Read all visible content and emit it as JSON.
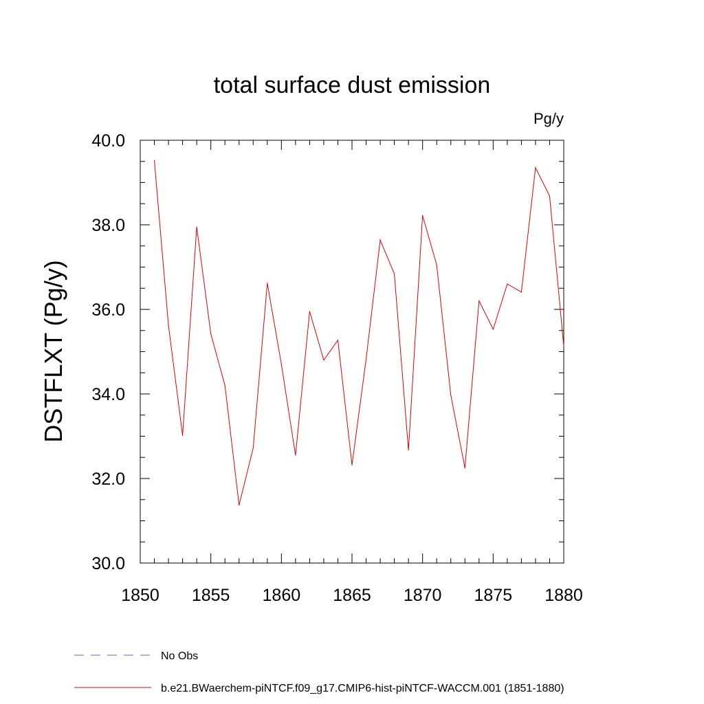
{
  "chart_data": {
    "type": "line",
    "title": "total surface dust emission",
    "units_label": "Pg/y",
    "ylabel": "DSTFLXT  (Pg/y)",
    "xlabel": "",
    "xlim": [
      1850,
      1880
    ],
    "ylim": [
      30.0,
      40.0
    ],
    "x_ticks": [
      "1850",
      "1855",
      "1860",
      "1865",
      "1870",
      "1875",
      "1880"
    ],
    "y_ticks": [
      "30.0",
      "32.0",
      "34.0",
      "36.0",
      "38.0",
      "40.0"
    ],
    "grid": false,
    "legend_position": "bottom-left",
    "series": [
      {
        "name": "b.e21.BWaerchem-piNTCF.f09_g17.CMIP6-hist-piNTCF-WACCM.001 (1851-1880)",
        "color": "#e00000",
        "style": "solid",
        "x": [
          1851,
          1852,
          1853,
          1854,
          1855,
          1856,
          1857,
          1858,
          1859,
          1860,
          1861,
          1862,
          1863,
          1864,
          1865,
          1866,
          1867,
          1868,
          1869,
          1870,
          1871,
          1872,
          1873,
          1874,
          1875,
          1876,
          1877,
          1878,
          1879,
          1880
        ],
        "values": [
          39.52,
          35.62,
          33.02,
          37.95,
          35.42,
          34.2,
          31.37,
          32.72,
          36.62,
          34.7,
          32.55,
          35.95,
          34.8,
          35.27,
          32.32,
          34.82,
          37.64,
          36.84,
          32.67,
          38.22,
          37.05,
          33.97,
          32.25,
          36.2,
          35.53,
          36.6,
          36.41,
          39.35,
          38.68,
          35.13
        ]
      },
      {
        "name": "No Obs",
        "color": "#6a5acd",
        "style": "dashed",
        "x": [],
        "values": []
      }
    ]
  }
}
